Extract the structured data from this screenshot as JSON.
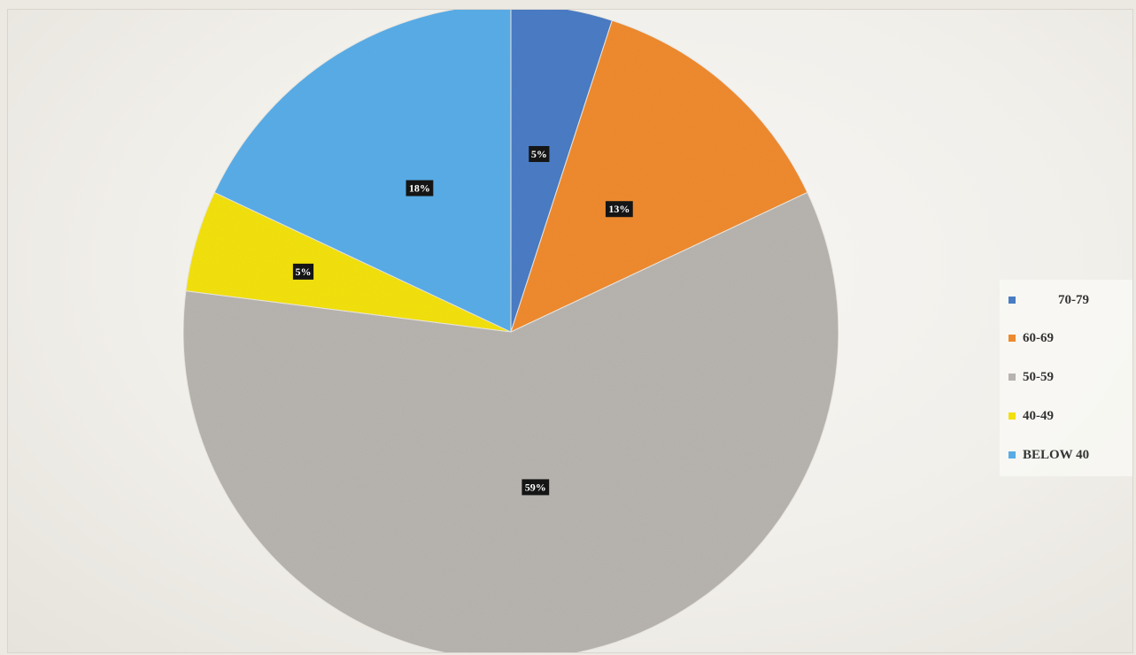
{
  "chart_data": {
    "type": "pie",
    "slices": [
      {
        "label": "70-79",
        "value": 5,
        "display": "5%",
        "color": "#4a7cc4"
      },
      {
        "label": "60-69",
        "value": 13,
        "display": "13%",
        "color": "#ee8a2e"
      },
      {
        "label": "50-59",
        "value": 59,
        "display": "59%",
        "color": "#b7b3af"
      },
      {
        "label": "40-49",
        "value": 5,
        "display": "5%",
        "color": "#f2e00e"
      },
      {
        "label": "BELOW 40",
        "value": 18,
        "display": "18%",
        "color": "#59ace6"
      }
    ],
    "start_angle_deg": 0,
    "direction": "clockwise",
    "legend_position": "right"
  }
}
